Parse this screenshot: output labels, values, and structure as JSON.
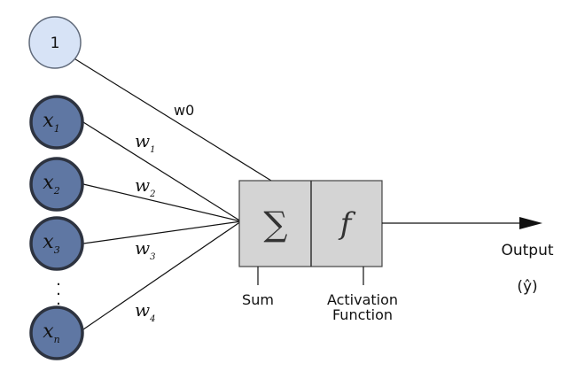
{
  "diagram": {
    "bias_node": {
      "label": "1",
      "fill": "#d7e3f6",
      "stroke": "#606a7a"
    },
    "input_nodes": [
      {
        "base": "x",
        "sub": "1"
      },
      {
        "base": "x",
        "sub": "2"
      },
      {
        "base": "x",
        "sub": "3"
      },
      {
        "base": "x",
        "sub": "n"
      }
    ],
    "input_node_fill": "#5f77a3",
    "input_node_stroke": "#2d3340",
    "ellipsis": ".",
    "bias_weight": "w0",
    "weights": [
      {
        "base": "w",
        "sub": "1"
      },
      {
        "base": "w",
        "sub": "2"
      },
      {
        "base": "w",
        "sub": "3"
      },
      {
        "base": "w",
        "sub": "4"
      }
    ],
    "sum_symbol": "∑",
    "activation_symbol": "f",
    "box_fill": "#d4d4d4",
    "sum_label": "Sum",
    "activation_label_line1": "Activation",
    "activation_label_line2": "Function",
    "output_label": "Output",
    "output_symbol": "(ŷ)"
  }
}
